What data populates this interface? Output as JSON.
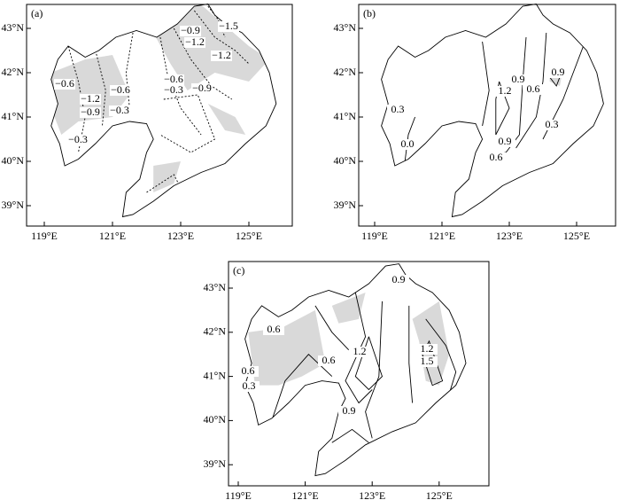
{
  "panels": [
    {
      "label": "(a)",
      "x_ticks": [
        "119°E",
        "121°E",
        "123°E",
        "125°E"
      ],
      "y_ticks": [
        "43°N",
        "42°N",
        "41°N",
        "40°N",
        "39°N"
      ],
      "contour_labels": [
        "−0.9",
        "−1.5",
        "−1.2",
        "−1.2",
        "−0.6",
        "−0.6",
        "−1.2",
        "−0.6",
        "−0.3",
        "−0.9",
        "−0.9",
        "−0.3",
        "−0.3"
      ]
    },
    {
      "label": "(b)",
      "x_ticks": [
        "119°E",
        "121°E",
        "123°E",
        "125°E"
      ],
      "y_ticks": [
        "43°N",
        "42°N",
        "41°N",
        "40°N",
        "39°N"
      ],
      "contour_labels": [
        "0.9",
        "0.9",
        "1.2",
        "0.6",
        "0.3",
        "0.3",
        "0.9",
        "0.0",
        "0.6"
      ]
    },
    {
      "label": "(c)",
      "x_ticks": [
        "119°E",
        "121°E",
        "123°E",
        "125°E"
      ],
      "y_ticks": [
        "43°N",
        "42°N",
        "41°N",
        "40°N",
        "39°N"
      ],
      "contour_labels": [
        "0.9",
        "0.6",
        "1.2",
        "1.2",
        "0.6",
        "1.5",
        "0.6",
        "0.3",
        "0.9"
      ]
    }
  ]
}
